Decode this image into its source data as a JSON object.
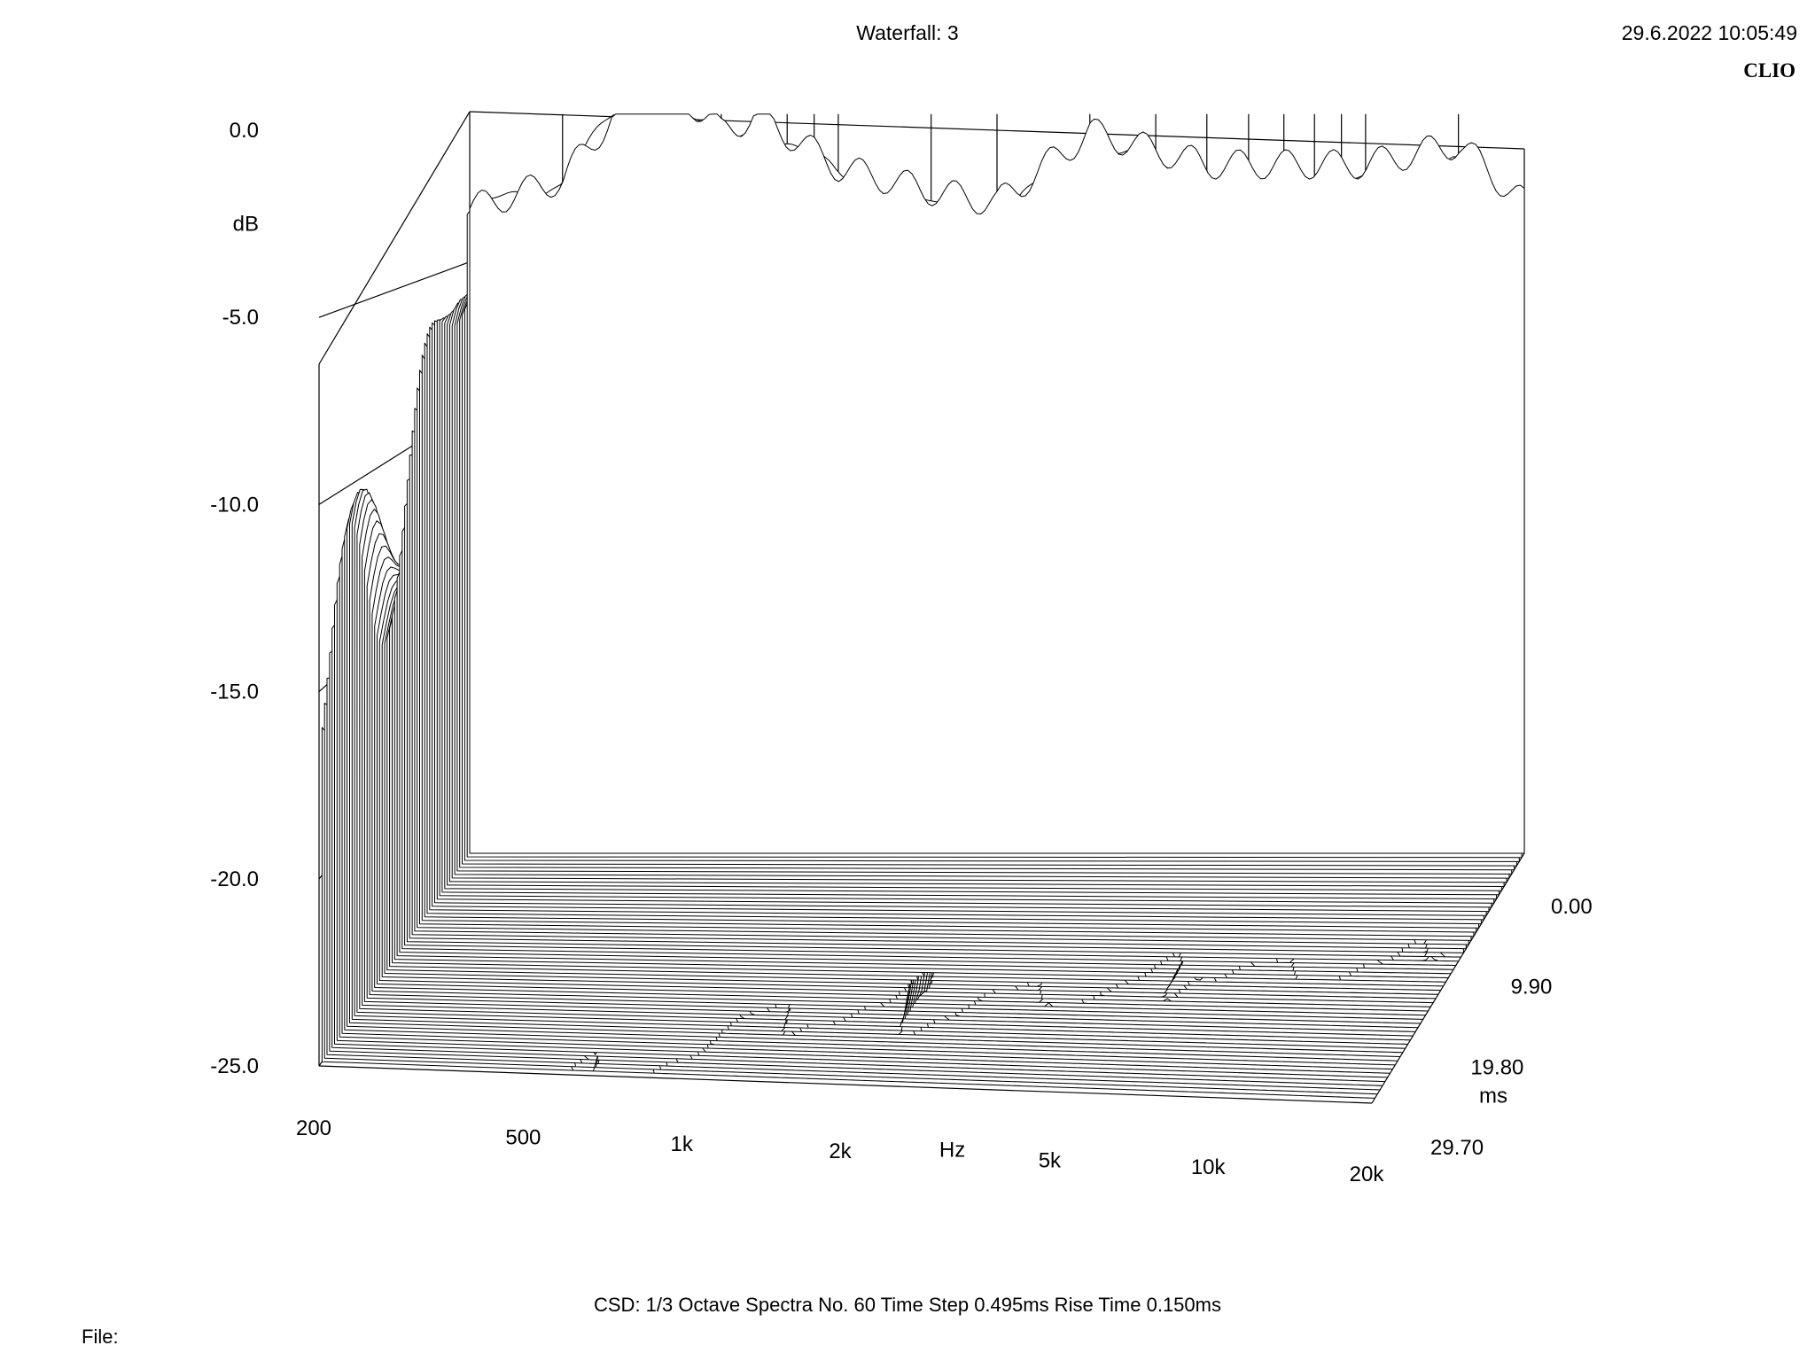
{
  "header": {
    "title": "Waterfall: 3",
    "datetime": "29.6.2022 10:05:49",
    "brand": "CLIO"
  },
  "footer": {
    "info": "CSD:   1/3 Octave   Spectra No. 60   Time Step 0.495ms   Rise Time 0.150ms",
    "file_label": "File:"
  },
  "chart_data": {
    "type": "waterfall",
    "title": "Waterfall: 3",
    "xlabel": "Hz",
    "ylabel": "dB",
    "zlabel": "ms",
    "x_scale": "log",
    "xlim": [
      200,
      20000
    ],
    "ylim": [
      -25,
      0
    ],
    "zlim": [
      0,
      29.7
    ],
    "x_tick_labels": [
      "200",
      "500",
      "1k",
      "2k",
      "5k",
      "10k",
      "20k"
    ],
    "x_tick_values": [
      200,
      500,
      1000,
      2000,
      5000,
      10000,
      20000
    ],
    "y_tick_labels": [
      "0.0",
      "-5.0",
      "-10.0",
      "-15.0",
      "-20.0",
      "-25.0"
    ],
    "y_tick_values": [
      0,
      -5,
      -10,
      -15,
      -20,
      -25
    ],
    "z_tick_labels": [
      "0.00",
      "9.90",
      "19.80",
      "29.70"
    ],
    "z_tick_values": [
      0,
      9.9,
      19.8,
      29.7
    ],
    "spectra_count": 60,
    "time_step_ms": 0.495,
    "rise_time_ms": 0.15,
    "smoothing": "1/3 Octave",
    "first_spectrum_db": [
      {
        "hz": 200,
        "db": -3.2
      },
      {
        "hz": 300,
        "db": -2.2
      },
      {
        "hz": 400,
        "db": 0.6
      },
      {
        "hz": 500,
        "db": 0.8
      },
      {
        "hz": 600,
        "db": -0.6
      },
      {
        "hz": 700,
        "db": 0.0
      },
      {
        "hz": 1000,
        "db": -1.8
      },
      {
        "hz": 1500,
        "db": -2.6
      },
      {
        "hz": 2000,
        "db": -3.0
      },
      {
        "hz": 3000,
        "db": -0.6
      },
      {
        "hz": 5000,
        "db": -1.7
      },
      {
        "hz": 10000,
        "db": -1.7
      },
      {
        "hz": 15000,
        "db": -1.0
      },
      {
        "hz": 20000,
        "db": -3.0
      }
    ]
  },
  "colors": {
    "line": "#000000",
    "background": "#ffffff"
  }
}
